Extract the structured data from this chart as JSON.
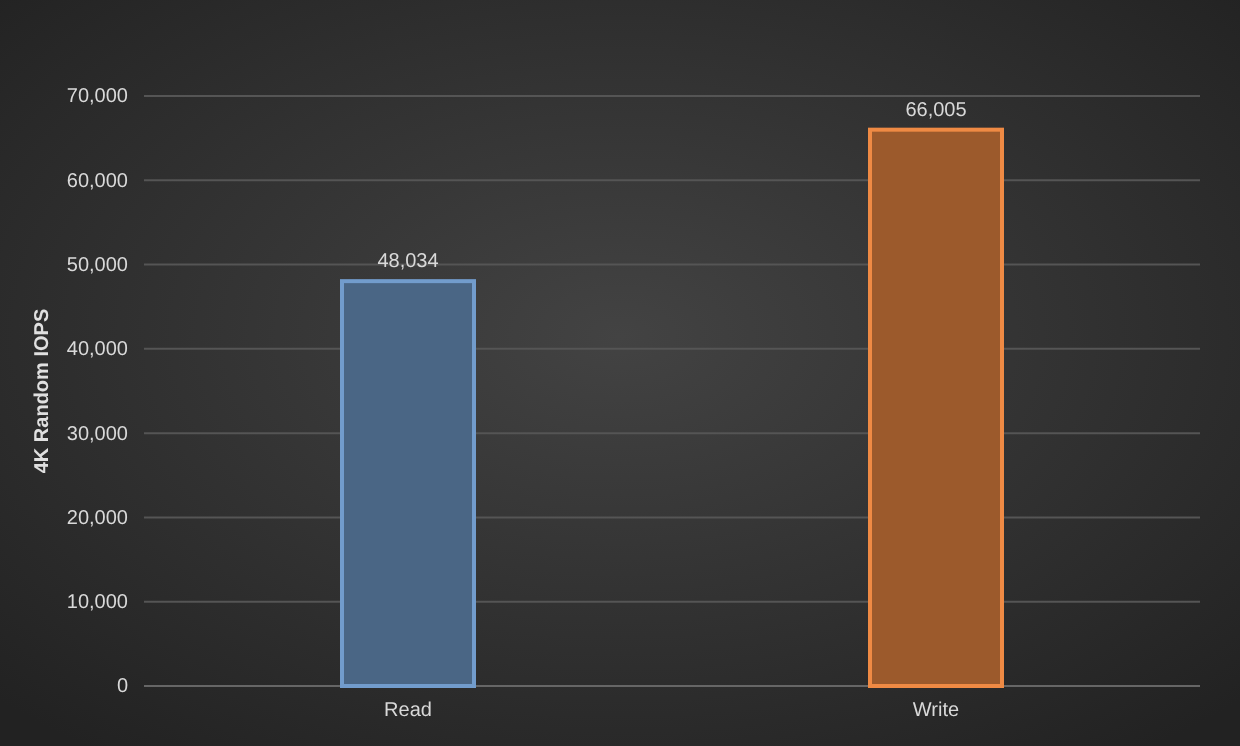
{
  "chart_data": {
    "type": "bar",
    "ylabel": "4K Random IOPS",
    "categories": [
      "Read",
      "Write"
    ],
    "values": [
      48034,
      66005
    ],
    "colors": [
      "#4a6685",
      "#9c5a2c"
    ],
    "ylim": [
      0,
      70000
    ],
    "yticks": [
      {
        "value": 0,
        "label": "0"
      },
      {
        "value": 10000,
        "label": "10,000"
      },
      {
        "value": 20000,
        "label": "20,000"
      },
      {
        "value": 30000,
        "label": "30,000"
      },
      {
        "value": 40000,
        "label": "40,000"
      },
      {
        "value": 50000,
        "label": "50,000"
      },
      {
        "value": 60000,
        "label": "60,000"
      },
      {
        "value": 70000,
        "label": "70,000"
      }
    ],
    "grid": "y",
    "value_labels": [
      "48,034",
      "66,005"
    ]
  }
}
